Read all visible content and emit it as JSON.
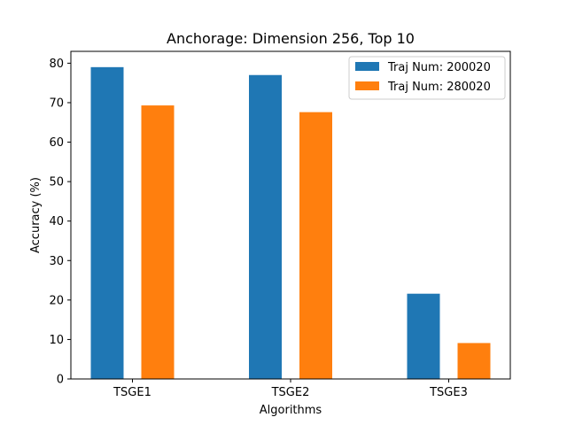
{
  "chart_data": {
    "type": "bar",
    "title": "Anchorage: Dimension 256, Top 10",
    "xlabel": "Algorithms",
    "ylabel": "Accuracy (%)",
    "categories": [
      "TSGE1",
      "TSGE2",
      "TSGE3"
    ],
    "series": [
      {
        "name": "Traj Num: 200020",
        "color": "#1f77b4",
        "values": [
          79.0,
          77.0,
          21.6
        ]
      },
      {
        "name": "Traj Num: 280020",
        "color": "#ff7f0e",
        "values": [
          69.3,
          67.6,
          9.1
        ]
      }
    ],
    "ylim": [
      0,
      83
    ],
    "yticks": [
      0,
      10,
      20,
      30,
      40,
      50,
      60,
      70,
      80
    ],
    "legend_position": "top-right",
    "grid": false
  }
}
